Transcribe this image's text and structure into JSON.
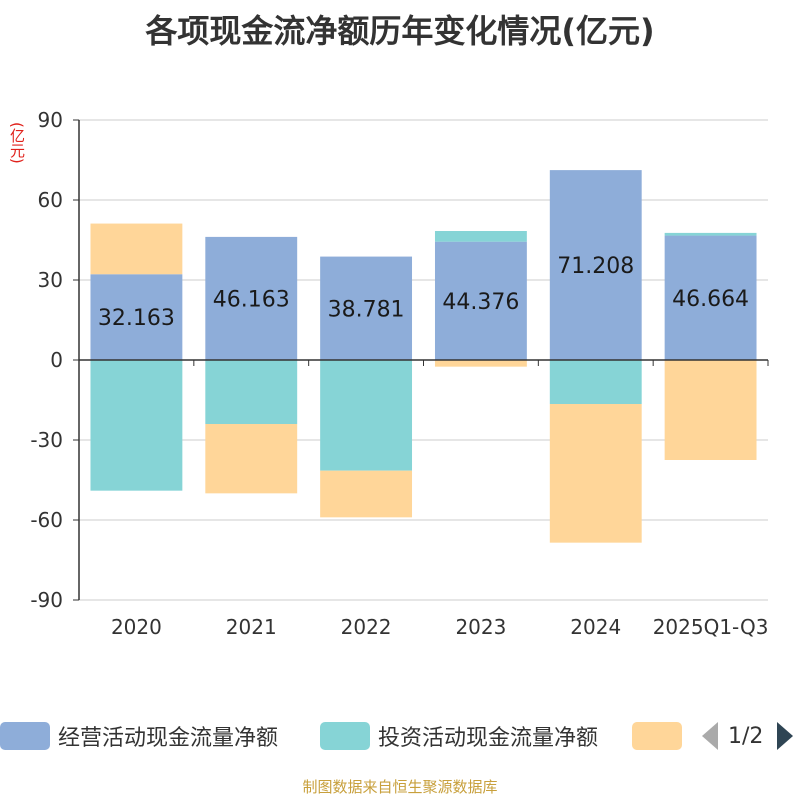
{
  "title": "各项现金流净额历年变化情况(亿元)",
  "unit_label": "(亿元)",
  "footer": "制图数据来自恒生聚源数据库",
  "legend": {
    "items": [
      {
        "label": "经营活动现金流量净额",
        "color": "#8eadd9"
      },
      {
        "label": "投资活动现金流量净额",
        "color": "#86d4d6"
      },
      {
        "label": "",
        "color": "#ffd699"
      }
    ],
    "page": "1/2"
  },
  "chart_data": {
    "type": "bar",
    "stacked": true,
    "title": "各项现金流净额历年变化情况(亿元)",
    "ylabel": "(亿元)",
    "ylim": [
      -90,
      90
    ],
    "yticks": [
      90,
      60,
      30,
      0,
      -30,
      -60,
      -90
    ],
    "categories": [
      "2020",
      "2021",
      "2022",
      "2023",
      "2024",
      "2025Q1-Q3"
    ],
    "series": [
      {
        "name": "经营活动现金流量净额",
        "color": "#8eadd9",
        "values": [
          32.163,
          46.163,
          38.781,
          44.376,
          71.208,
          46.664
        ],
        "labels": [
          "32.163",
          "46.163",
          "38.781",
          "44.376",
          "71.208",
          "46.664"
        ]
      },
      {
        "name": "投资活动现金流量净额",
        "color": "#86d4d6",
        "values": [
          -49.0,
          -24.0,
          -41.5,
          4.0,
          -16.5,
          1.0
        ]
      },
      {
        "name": "",
        "color": "#ffd699",
        "values": [
          19.0,
          -26.0,
          -17.5,
          -2.5,
          -52.0,
          -37.5
        ]
      }
    ]
  }
}
